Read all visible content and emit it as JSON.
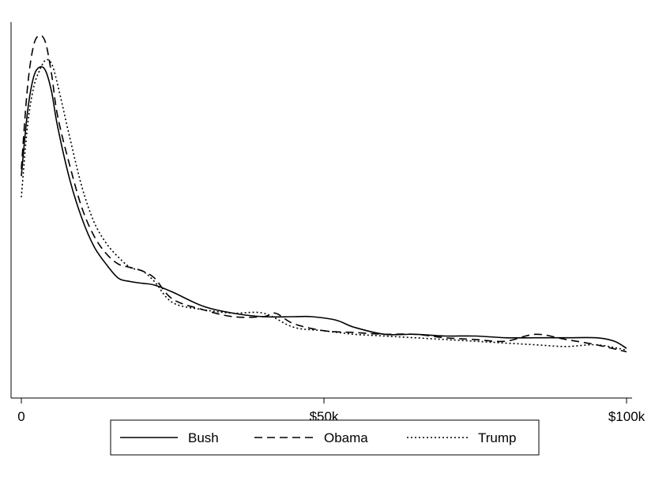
{
  "chart_data": {
    "type": "line",
    "title": "",
    "xlabel": "",
    "ylabel": "",
    "xlim": [
      0,
      100000
    ],
    "ylim": [
      0,
      1.0
    ],
    "xticks": [
      {
        "value": 0,
        "label": "0"
      },
      {
        "value": 50000,
        "label": "$50k"
      },
      {
        "value": 100000,
        "label": "$100k"
      }
    ],
    "grid": false,
    "legend_position": "bottom",
    "series": [
      {
        "name": "Bush",
        "style": "solid",
        "x": [
          0,
          1000,
          2000,
          3000,
          4000,
          5000,
          6000,
          8000,
          10000,
          12000,
          14000,
          16000,
          18000,
          20000,
          22000,
          25000,
          30000,
          35000,
          40000,
          45000,
          48000,
          52000,
          55000,
          60000,
          65000,
          70000,
          75000,
          80000,
          85000,
          90000,
          95000,
          98000,
          100000
        ],
        "values": [
          0.6,
          0.78,
          0.88,
          0.91,
          0.9,
          0.84,
          0.74,
          0.59,
          0.48,
          0.4,
          0.35,
          0.31,
          0.3,
          0.295,
          0.29,
          0.27,
          0.23,
          0.21,
          0.2,
          0.2,
          0.2,
          0.19,
          0.17,
          0.15,
          0.15,
          0.145,
          0.145,
          0.14,
          0.14,
          0.14,
          0.14,
          0.13,
          0.11
        ]
      },
      {
        "name": "Obama",
        "style": "dashed",
        "x": [
          0,
          1000,
          2000,
          3000,
          4000,
          5000,
          6000,
          8000,
          10000,
          12000,
          14000,
          16000,
          18000,
          20000,
          22000,
          25000,
          30000,
          35000,
          40000,
          42000,
          45000,
          50000,
          55000,
          60000,
          65000,
          70000,
          75000,
          80000,
          85000,
          90000,
          95000,
          100000
        ],
        "values": [
          0.62,
          0.85,
          0.97,
          1.0,
          0.98,
          0.89,
          0.77,
          0.63,
          0.51,
          0.43,
          0.38,
          0.35,
          0.34,
          0.33,
          0.31,
          0.25,
          0.22,
          0.2,
          0.2,
          0.21,
          0.18,
          0.16,
          0.155,
          0.15,
          0.15,
          0.14,
          0.135,
          0.13,
          0.15,
          0.135,
          0.12,
          0.1
        ]
      },
      {
        "name": "Trump",
        "style": "dotted",
        "x": [
          0,
          1000,
          2000,
          3000,
          4000,
          5000,
          6000,
          8000,
          10000,
          12000,
          14000,
          16000,
          18000,
          20000,
          22000,
          25000,
          30000,
          35000,
          40000,
          45000,
          50000,
          55000,
          60000,
          65000,
          70000,
          75000,
          80000,
          85000,
          90000,
          95000,
          100000
        ],
        "values": [
          0.54,
          0.74,
          0.85,
          0.9,
          0.93,
          0.92,
          0.86,
          0.71,
          0.57,
          0.47,
          0.41,
          0.37,
          0.34,
          0.33,
          0.3,
          0.24,
          0.22,
          0.21,
          0.21,
          0.17,
          0.16,
          0.15,
          0.145,
          0.14,
          0.135,
          0.13,
          0.125,
          0.12,
          0.115,
          0.12,
          0.105
        ]
      }
    ]
  },
  "legend": {
    "items": [
      {
        "label": "Bush"
      },
      {
        "label": "Obama"
      },
      {
        "label": "Trump"
      }
    ]
  }
}
